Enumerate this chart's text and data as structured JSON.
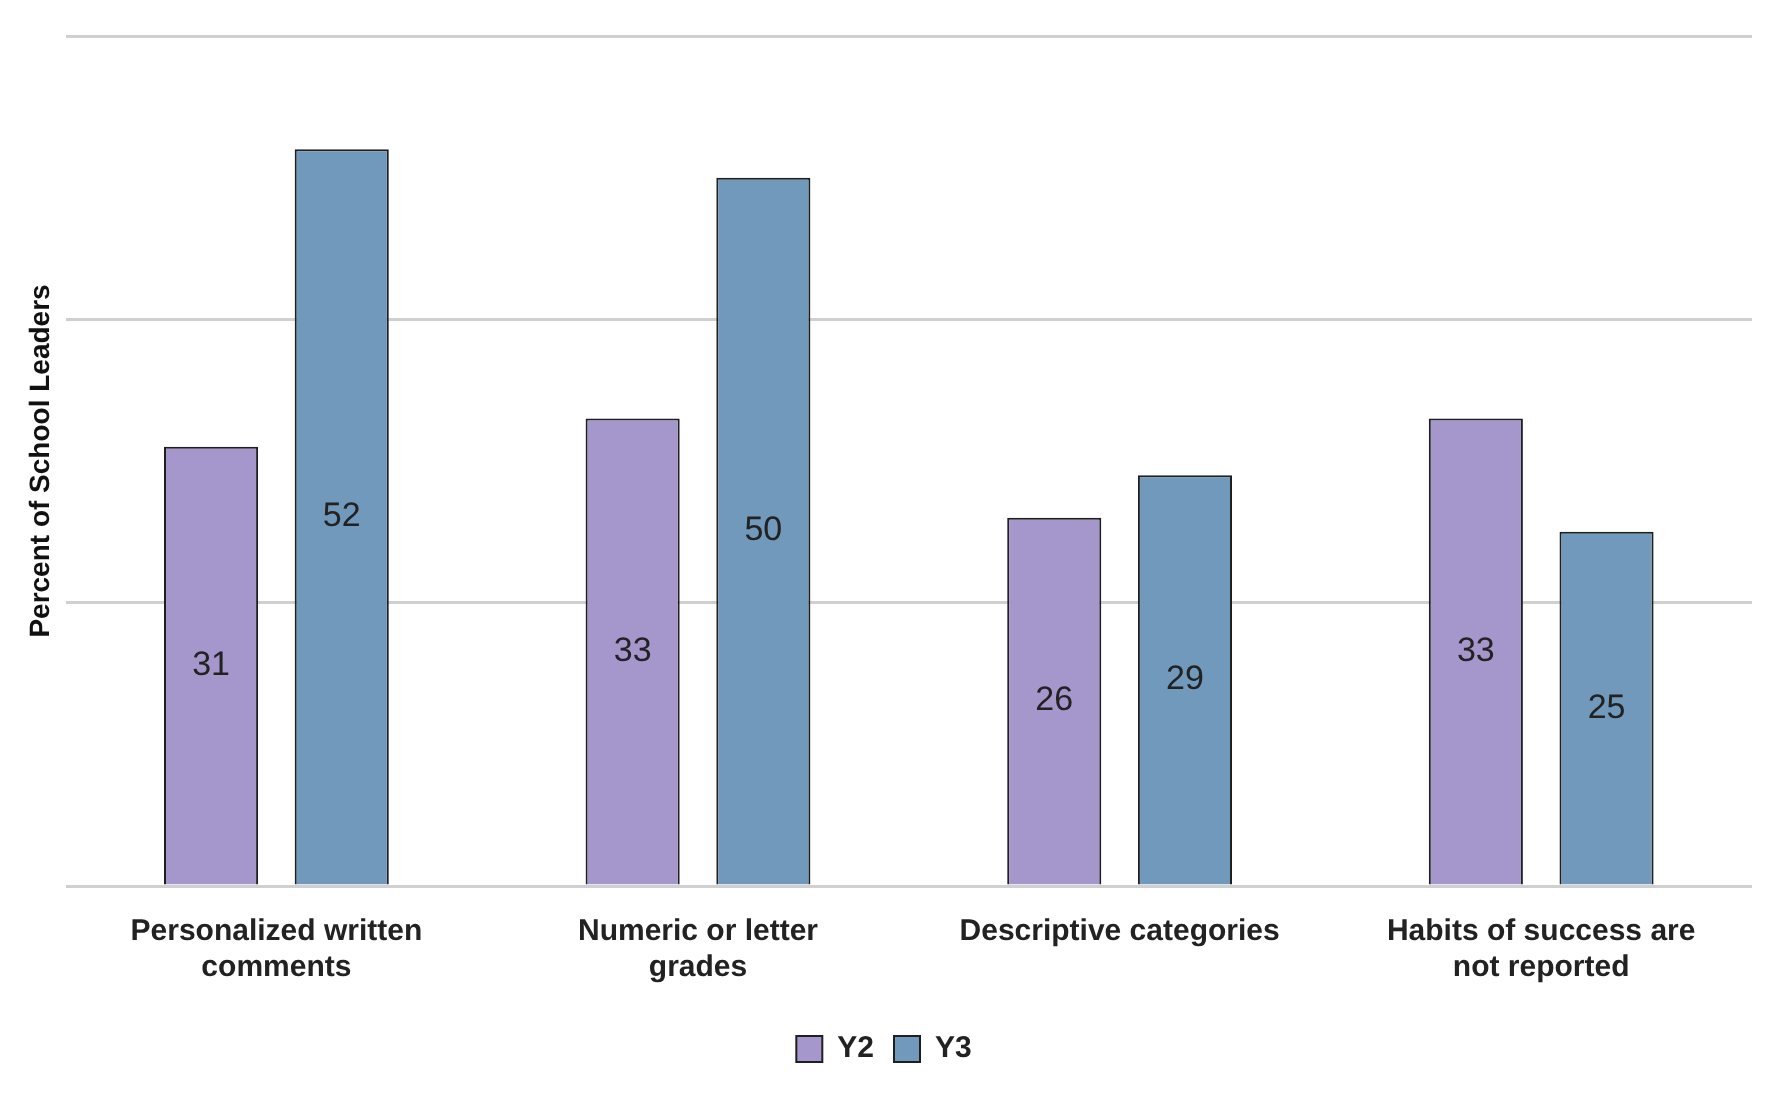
{
  "chart_data": {
    "type": "bar",
    "ylabel": "Percent of School Leaders",
    "categories": [
      "Personalized written comments",
      "Numeric or letter grades",
      "Descriptive categories",
      "Habits of success are not reported"
    ],
    "series": [
      {
        "name": "Y2",
        "color": "#a597cc",
        "values": [
          31,
          33,
          26,
          33
        ]
      },
      {
        "name": "Y3",
        "color": "#7099bb",
        "values": [
          52,
          50,
          29,
          25
        ]
      }
    ],
    "ylim": [
      0,
      60
    ],
    "yticks": [
      {
        "value": 0,
        "label": null
      },
      {
        "value": 20,
        "label": null
      },
      {
        "value": 40,
        "label": null
      },
      {
        "value": 60,
        "label": null
      }
    ],
    "tick_labels": "x",
    "grid": "y",
    "legend": "bottom",
    "data_labels": true
  }
}
